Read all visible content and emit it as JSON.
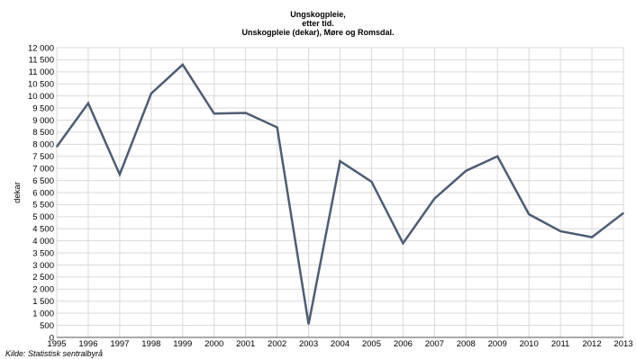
{
  "chart_data": {
    "type": "line",
    "title_lines": [
      "Ungskogpleie,",
      "etter tid.",
      "Unskogpleie (dekar), Møre og Romsdal."
    ],
    "xlabel": "",
    "ylabel": "dekar",
    "source": "Kilde: Statistisk sentralbyrå",
    "x": [
      "1995",
      "1996",
      "1997",
      "1998",
      "1999",
      "2000",
      "2001",
      "2002",
      "2003",
      "2004",
      "2005",
      "2006",
      "2007",
      "2008",
      "2009",
      "2010",
      "2011",
      "2012",
      "2013"
    ],
    "series": [
      {
        "values": [
          7900,
          9700,
          6750,
          10100,
          11300,
          9270,
          9300,
          8700,
          550,
          7300,
          6450,
          3900,
          5750,
          6900,
          7500,
          5100,
          4400,
          4150,
          5150
        ],
        "color": "#4d5d75"
      }
    ],
    "ylim": [
      0,
      12000
    ],
    "yticks": [
      "0",
      "500",
      "1 000",
      "1 500",
      "2 000",
      "2 500",
      "3 000",
      "3 500",
      "4 000",
      "4 500",
      "5 000",
      "5 500",
      "6 000",
      "6 500",
      "7 000",
      "7 500",
      "8 000",
      "8 500",
      "9 000",
      "9 500",
      "10 000",
      "10 500",
      "11 000",
      "11 500",
      "12 000"
    ],
    "grid": true
  }
}
